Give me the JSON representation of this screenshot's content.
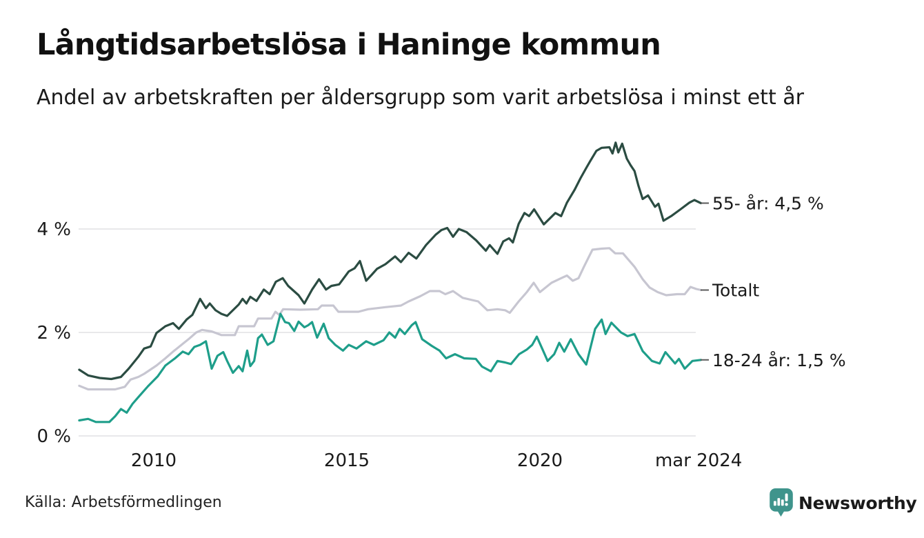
{
  "header": {
    "title": "Långtidsarbetslösa i Haninge kommun",
    "subtitle": "Andel av arbetskraften per åldersgrupp som varit arbetslösa i minst ett år"
  },
  "footer": {
    "source": "Källa: Arbetsförmedlingen",
    "brand": "Newsworthy"
  },
  "colors": {
    "title_text": "#111111",
    "body_text": "#1a1a1a",
    "gridline": "#e1e1e4",
    "end_tick": "#5a5a5a",
    "brand_teal": "#3f948c",
    "series_55": "#2b4c42",
    "series_total": "#c7c6d1",
    "series_1824": "#1e9e8a"
  },
  "chart_data": {
    "type": "line",
    "title": "Långtidsarbetslösa i Haninge kommun",
    "subtitle": "Andel av arbetskraften per åldersgrupp som varit arbetslösa i minst ett år",
    "unit": "% av arbetskraften",
    "xlim": [
      2008.07,
      2024.17
    ],
    "ylim": [
      0,
      6
    ],
    "grid": true,
    "legend_position": "right-end-labels",
    "x_axis": {
      "ticks": [
        {
          "label": "2010",
          "year": 2010
        },
        {
          "label": "2015",
          "year": 2015
        },
        {
          "label": "2020",
          "year": 2020
        },
        {
          "label": "mar 2024",
          "year": 2024.11
        }
      ]
    },
    "y_axis": {
      "ticks": [
        {
          "label": "0 %",
          "value": 0
        },
        {
          "label": "2 %",
          "value": 2
        },
        {
          "label": "4 %",
          "value": 4
        }
      ]
    },
    "series": [
      {
        "id": "totalt",
        "name": "Totalt",
        "end_label": "Totalt",
        "color": "#c7c6d1",
        "points": [
          [
            2008.07,
            0.97
          ],
          [
            2008.3,
            0.9
          ],
          [
            2008.7,
            0.9
          ],
          [
            2009.0,
            0.9
          ],
          [
            2009.25,
            0.95
          ],
          [
            2009.4,
            1.09
          ],
          [
            2009.6,
            1.14
          ],
          [
            2009.75,
            1.2
          ],
          [
            2010.07,
            1.36
          ],
          [
            2010.3,
            1.5
          ],
          [
            2010.5,
            1.63
          ],
          [
            2010.75,
            1.78
          ],
          [
            2010.9,
            1.87
          ],
          [
            2011.1,
            2.0
          ],
          [
            2011.25,
            2.05
          ],
          [
            2011.5,
            2.02
          ],
          [
            2011.75,
            1.95
          ],
          [
            2012.1,
            1.95
          ],
          [
            2012.2,
            2.12
          ],
          [
            2012.6,
            2.12
          ],
          [
            2012.7,
            2.27
          ],
          [
            2013.05,
            2.27
          ],
          [
            2013.15,
            2.4
          ],
          [
            2013.25,
            2.34
          ],
          [
            2013.35,
            2.45
          ],
          [
            2013.8,
            2.44
          ],
          [
            2014.25,
            2.45
          ],
          [
            2014.35,
            2.52
          ],
          [
            2014.65,
            2.52
          ],
          [
            2014.78,
            2.4
          ],
          [
            2015.3,
            2.4
          ],
          [
            2015.55,
            2.45
          ],
          [
            2016.0,
            2.49
          ],
          [
            2016.4,
            2.52
          ],
          [
            2016.6,
            2.6
          ],
          [
            2016.9,
            2.7
          ],
          [
            2017.15,
            2.8
          ],
          [
            2017.4,
            2.8
          ],
          [
            2017.55,
            2.74
          ],
          [
            2017.75,
            2.8
          ],
          [
            2018.0,
            2.67
          ],
          [
            2018.4,
            2.6
          ],
          [
            2018.64,
            2.43
          ],
          [
            2018.9,
            2.45
          ],
          [
            2019.1,
            2.43
          ],
          [
            2019.22,
            2.38
          ],
          [
            2019.45,
            2.6
          ],
          [
            2019.66,
            2.78
          ],
          [
            2019.84,
            2.96
          ],
          [
            2020.0,
            2.78
          ],
          [
            2020.3,
            2.96
          ],
          [
            2020.55,
            3.05
          ],
          [
            2020.7,
            3.1
          ],
          [
            2020.85,
            3.0
          ],
          [
            2021.0,
            3.05
          ],
          [
            2021.14,
            3.27
          ],
          [
            2021.36,
            3.6
          ],
          [
            2021.6,
            3.62
          ],
          [
            2021.8,
            3.63
          ],
          [
            2021.95,
            3.53
          ],
          [
            2022.15,
            3.53
          ],
          [
            2022.45,
            3.27
          ],
          [
            2022.66,
            3.03
          ],
          [
            2022.84,
            2.87
          ],
          [
            2023.05,
            2.78
          ],
          [
            2023.27,
            2.72
          ],
          [
            2023.55,
            2.74
          ],
          [
            2023.75,
            2.74
          ],
          [
            2023.9,
            2.88
          ],
          [
            2024.05,
            2.84
          ],
          [
            2024.17,
            2.82
          ]
        ]
      },
      {
        "id": "18-24-ar",
        "name": "18-24 år",
        "end_label": "18-24 år: 1,5 %",
        "color": "#1e9e8a",
        "points": [
          [
            2008.07,
            0.3
          ],
          [
            2008.3,
            0.33
          ],
          [
            2008.5,
            0.27
          ],
          [
            2008.85,
            0.27
          ],
          [
            2009.0,
            0.38
          ],
          [
            2009.15,
            0.52
          ],
          [
            2009.3,
            0.45
          ],
          [
            2009.45,
            0.62
          ],
          [
            2009.6,
            0.75
          ],
          [
            2009.85,
            0.96
          ],
          [
            2010.1,
            1.15
          ],
          [
            2010.3,
            1.36
          ],
          [
            2010.55,
            1.5
          ],
          [
            2010.75,
            1.63
          ],
          [
            2010.9,
            1.58
          ],
          [
            2011.05,
            1.72
          ],
          [
            2011.2,
            1.76
          ],
          [
            2011.35,
            1.83
          ],
          [
            2011.5,
            1.3
          ],
          [
            2011.65,
            1.55
          ],
          [
            2011.8,
            1.62
          ],
          [
            2011.9,
            1.45
          ],
          [
            2012.05,
            1.22
          ],
          [
            2012.2,
            1.35
          ],
          [
            2012.3,
            1.25
          ],
          [
            2012.42,
            1.65
          ],
          [
            2012.5,
            1.35
          ],
          [
            2012.6,
            1.45
          ],
          [
            2012.7,
            1.89
          ],
          [
            2012.8,
            1.96
          ],
          [
            2012.95,
            1.76
          ],
          [
            2013.1,
            1.83
          ],
          [
            2013.28,
            2.36
          ],
          [
            2013.4,
            2.2
          ],
          [
            2013.5,
            2.18
          ],
          [
            2013.64,
            2.03
          ],
          [
            2013.75,
            2.21
          ],
          [
            2013.9,
            2.1
          ],
          [
            2014.0,
            2.14
          ],
          [
            2014.1,
            2.2
          ],
          [
            2014.23,
            1.9
          ],
          [
            2014.4,
            2.17
          ],
          [
            2014.53,
            1.89
          ],
          [
            2014.7,
            1.76
          ],
          [
            2014.9,
            1.65
          ],
          [
            2015.05,
            1.76
          ],
          [
            2015.25,
            1.69
          ],
          [
            2015.5,
            1.83
          ],
          [
            2015.7,
            1.76
          ],
          [
            2015.95,
            1.85
          ],
          [
            2016.1,
            2.0
          ],
          [
            2016.25,
            1.9
          ],
          [
            2016.37,
            2.07
          ],
          [
            2016.5,
            1.97
          ],
          [
            2016.68,
            2.14
          ],
          [
            2016.78,
            2.2
          ],
          [
            2016.95,
            1.87
          ],
          [
            2017.2,
            1.74
          ],
          [
            2017.4,
            1.65
          ],
          [
            2017.57,
            1.5
          ],
          [
            2017.8,
            1.58
          ],
          [
            2018.04,
            1.5
          ],
          [
            2018.34,
            1.49
          ],
          [
            2018.5,
            1.34
          ],
          [
            2018.73,
            1.25
          ],
          [
            2018.9,
            1.45
          ],
          [
            2019.1,
            1.42
          ],
          [
            2019.25,
            1.39
          ],
          [
            2019.46,
            1.58
          ],
          [
            2019.66,
            1.67
          ],
          [
            2019.8,
            1.76
          ],
          [
            2019.92,
            1.92
          ],
          [
            2020.07,
            1.67
          ],
          [
            2020.2,
            1.45
          ],
          [
            2020.37,
            1.58
          ],
          [
            2020.5,
            1.8
          ],
          [
            2020.63,
            1.63
          ],
          [
            2020.8,
            1.87
          ],
          [
            2021.0,
            1.58
          ],
          [
            2021.2,
            1.38
          ],
          [
            2021.43,
            2.07
          ],
          [
            2021.6,
            2.25
          ],
          [
            2021.7,
            1.97
          ],
          [
            2021.85,
            2.19
          ],
          [
            2022.1,
            2.0
          ],
          [
            2022.27,
            1.93
          ],
          [
            2022.45,
            1.97
          ],
          [
            2022.66,
            1.64
          ],
          [
            2022.9,
            1.45
          ],
          [
            2023.1,
            1.4
          ],
          [
            2023.25,
            1.62
          ],
          [
            2023.5,
            1.4
          ],
          [
            2023.6,
            1.49
          ],
          [
            2023.75,
            1.3
          ],
          [
            2023.95,
            1.45
          ],
          [
            2024.17,
            1.47
          ]
        ]
      },
      {
        "id": "55-ar",
        "name": "55- år",
        "end_label": "55- år: 4,5 %",
        "color": "#2b4c42",
        "points": [
          [
            2008.07,
            1.28
          ],
          [
            2008.3,
            1.17
          ],
          [
            2008.6,
            1.12
          ],
          [
            2008.9,
            1.1
          ],
          [
            2009.15,
            1.14
          ],
          [
            2009.35,
            1.3
          ],
          [
            2009.6,
            1.53
          ],
          [
            2009.75,
            1.69
          ],
          [
            2009.92,
            1.73
          ],
          [
            2010.07,
            1.99
          ],
          [
            2010.3,
            2.12
          ],
          [
            2010.5,
            2.18
          ],
          [
            2010.65,
            2.07
          ],
          [
            2010.85,
            2.25
          ],
          [
            2011.0,
            2.34
          ],
          [
            2011.2,
            2.65
          ],
          [
            2011.35,
            2.47
          ],
          [
            2011.45,
            2.56
          ],
          [
            2011.6,
            2.43
          ],
          [
            2011.75,
            2.36
          ],
          [
            2011.9,
            2.32
          ],
          [
            2012.2,
            2.54
          ],
          [
            2012.3,
            2.65
          ],
          [
            2012.4,
            2.56
          ],
          [
            2012.5,
            2.69
          ],
          [
            2012.66,
            2.61
          ],
          [
            2012.85,
            2.83
          ],
          [
            2013.0,
            2.74
          ],
          [
            2013.16,
            2.98
          ],
          [
            2013.34,
            3.05
          ],
          [
            2013.48,
            2.9
          ],
          [
            2013.75,
            2.72
          ],
          [
            2013.9,
            2.56
          ],
          [
            2014.1,
            2.83
          ],
          [
            2014.28,
            3.03
          ],
          [
            2014.46,
            2.83
          ],
          [
            2014.6,
            2.9
          ],
          [
            2014.8,
            2.93
          ],
          [
            2015.05,
            3.18
          ],
          [
            2015.2,
            3.24
          ],
          [
            2015.34,
            3.38
          ],
          [
            2015.5,
            3.0
          ],
          [
            2015.65,
            3.12
          ],
          [
            2015.78,
            3.23
          ],
          [
            2016.0,
            3.32
          ],
          [
            2016.25,
            3.47
          ],
          [
            2016.4,
            3.36
          ],
          [
            2016.6,
            3.54
          ],
          [
            2016.8,
            3.43
          ],
          [
            2017.05,
            3.69
          ],
          [
            2017.3,
            3.89
          ],
          [
            2017.45,
            3.98
          ],
          [
            2017.6,
            4.02
          ],
          [
            2017.75,
            3.85
          ],
          [
            2017.9,
            4.0
          ],
          [
            2018.1,
            3.94
          ],
          [
            2018.35,
            3.78
          ],
          [
            2018.6,
            3.58
          ],
          [
            2018.7,
            3.69
          ],
          [
            2018.9,
            3.52
          ],
          [
            2019.05,
            3.76
          ],
          [
            2019.2,
            3.82
          ],
          [
            2019.3,
            3.74
          ],
          [
            2019.45,
            4.1
          ],
          [
            2019.6,
            4.31
          ],
          [
            2019.72,
            4.25
          ],
          [
            2019.85,
            4.38
          ],
          [
            2020.1,
            4.09
          ],
          [
            2020.4,
            4.31
          ],
          [
            2020.55,
            4.25
          ],
          [
            2020.7,
            4.51
          ],
          [
            2020.9,
            4.76
          ],
          [
            2021.05,
            4.98
          ],
          [
            2021.2,
            5.18
          ],
          [
            2021.3,
            5.31
          ],
          [
            2021.46,
            5.51
          ],
          [
            2021.6,
            5.57
          ],
          [
            2021.8,
            5.58
          ],
          [
            2021.88,
            5.46
          ],
          [
            2021.96,
            5.67
          ],
          [
            2022.03,
            5.48
          ],
          [
            2022.13,
            5.65
          ],
          [
            2022.25,
            5.36
          ],
          [
            2022.35,
            5.23
          ],
          [
            2022.45,
            5.12
          ],
          [
            2022.55,
            4.84
          ],
          [
            2022.66,
            4.58
          ],
          [
            2022.8,
            4.65
          ],
          [
            2022.98,
            4.43
          ],
          [
            2023.07,
            4.49
          ],
          [
            2023.2,
            4.16
          ],
          [
            2023.4,
            4.25
          ],
          [
            2023.64,
            4.38
          ],
          [
            2023.87,
            4.51
          ],
          [
            2024.0,
            4.56
          ],
          [
            2024.17,
            4.5
          ]
        ]
      }
    ]
  }
}
